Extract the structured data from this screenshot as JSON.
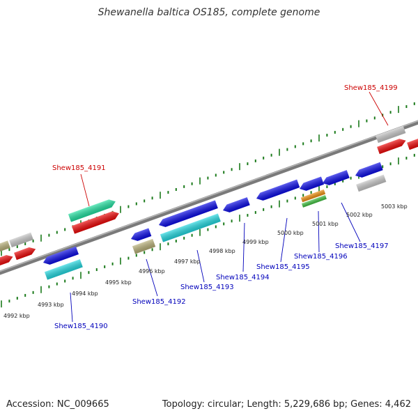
{
  "title": "Shewanella baltica OS185, complete genome",
  "footer": {
    "accession": "Accession: NC_009665",
    "stats": "Topology: circular; Length: 5,229,686 bp; Genes: 4,462"
  },
  "colors": {
    "backbone": "#7a7a7a",
    "ruler": "#1a7a1a",
    "forward_label": "#cc0000",
    "reverse_label": "#0000bb"
  },
  "kbp_labels": [
    "4992 kbp",
    "4993 kbp",
    "4994 kbp",
    "4995 kbp",
    "4996 kbp",
    "4997 kbp",
    "4998 kbp",
    "4999 kbp",
    "5000 kbp",
    "5001 kbp",
    "5002 kbp",
    "5003 kbp"
  ],
  "gene_labels": [
    {
      "text": "Shew185_4199",
      "strand": "forward"
    },
    {
      "text": "Shew185_4191",
      "strand": "forward"
    },
    {
      "text": "Shew185_4190",
      "strand": "reverse"
    },
    {
      "text": "Shew185_4192",
      "strand": "reverse"
    },
    {
      "text": "Shew185_4193",
      "strand": "reverse"
    },
    {
      "text": "Shew185_4194",
      "strand": "reverse"
    },
    {
      "text": "Shew185_4195",
      "strand": "reverse"
    },
    {
      "text": "Shew185_4196",
      "strand": "reverse"
    },
    {
      "text": "Shew185_4197",
      "strand": "reverse"
    }
  ],
  "gene_colors": {
    "blue": "#0a0ae6",
    "red": "#ee0808",
    "gray": "#c8c8c8",
    "khaki": "#b8b078",
    "green": "#22e0a0",
    "cyan": "#22d8e0",
    "orange": "#f09010",
    "lime": "#40c040"
  }
}
